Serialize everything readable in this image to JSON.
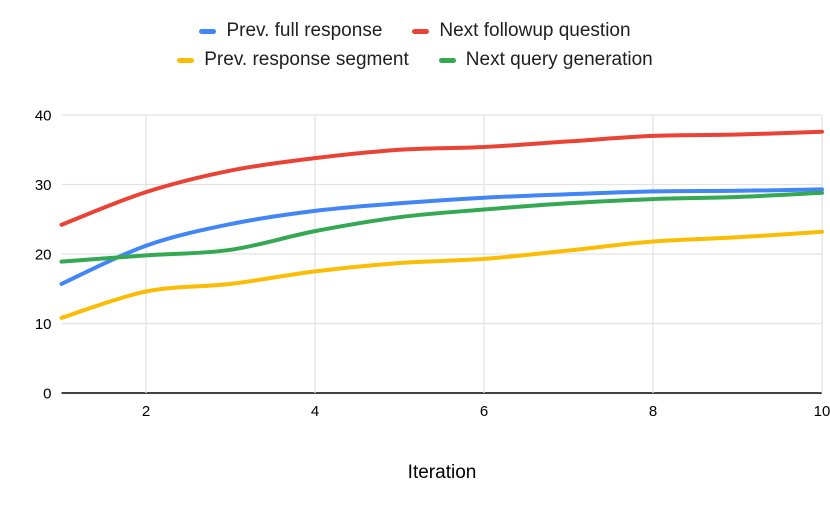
{
  "chart_data": {
    "type": "line",
    "title": "",
    "xlabel": "Iteration",
    "ylabel": "",
    "x": [
      1,
      2,
      3,
      4,
      5,
      6,
      7,
      8,
      9,
      10
    ],
    "xticks": [
      2,
      4,
      6,
      8,
      10
    ],
    "yticks": [
      0,
      10,
      20,
      30,
      40
    ],
    "xlim": [
      1,
      10
    ],
    "ylim": [
      0,
      40
    ],
    "grid": true,
    "legend_position": "top",
    "series": [
      {
        "name": "Prev. full response",
        "color": "#4285F4",
        "values": [
          15.7,
          21.2,
          24.3,
          26.2,
          27.3,
          28.1,
          28.6,
          29.0,
          29.1,
          29.3
        ]
      },
      {
        "name": "Next followup question",
        "color": "#EA4335",
        "values": [
          24.2,
          28.9,
          32.0,
          33.8,
          35.0,
          35.4,
          36.2,
          37.0,
          37.2,
          37.6
        ]
      },
      {
        "name": "Prev. response segment",
        "color": "#FBBC04",
        "values": [
          10.8,
          14.6,
          15.7,
          17.5,
          18.7,
          19.3,
          20.5,
          21.8,
          22.4,
          23.2
        ]
      },
      {
        "name": "Next query generation",
        "color": "#34A853",
        "values": [
          18.9,
          19.8,
          20.6,
          23.3,
          25.3,
          26.4,
          27.3,
          27.9,
          28.2,
          28.8
        ]
      }
    ]
  },
  "colors": {
    "background": "#FFFFFF",
    "gridline": "#E3E3E3",
    "axis_line": "#424242",
    "tick_label": "#000000",
    "legend_text": "#1F1F1F"
  }
}
